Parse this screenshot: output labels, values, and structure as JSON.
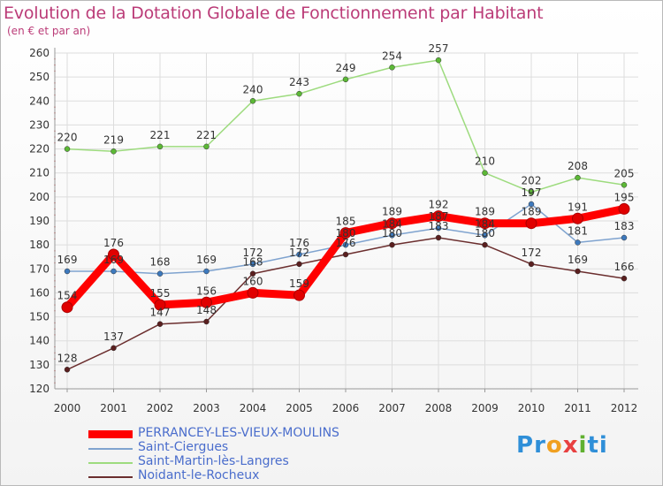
{
  "chart_data": {
    "type": "line",
    "title": "Evolution de la Dotation Globale de Fonctionnement par Habitant",
    "subtitle": "(en € et par an)",
    "xlabel": "",
    "ylabel": "",
    "ylim": [
      120,
      260
    ],
    "y_ticks": [
      120,
      130,
      140,
      150,
      160,
      170,
      180,
      190,
      200,
      210,
      220,
      230,
      240,
      250,
      260
    ],
    "categories": [
      "2000",
      "2001",
      "2002",
      "2003",
      "2004",
      "2005",
      "2006",
      "2007",
      "2008",
      "2009",
      "2010",
      "2011",
      "2012"
    ],
    "grid": true,
    "legend_position": "bottom-left",
    "series": [
      {
        "name": "Noidant-le-Rocheux",
        "color": "#6b2e2e",
        "point_color": "#5a1f1f",
        "values": [
          128,
          137,
          147,
          148,
          168,
          172,
          176,
          180,
          183,
          180,
          172,
          169,
          166
        ]
      },
      {
        "name": "Saint-Ciergues",
        "color": "#7fa3cf",
        "point_color": "#3d79bd",
        "values": [
          169,
          169,
          168,
          169,
          172,
          176,
          180,
          184,
          187,
          184,
          197,
          181,
          183
        ]
      },
      {
        "name": "Saint-Martin-lès-Langres",
        "color": "#9ddb7e",
        "point_color": "#5cb836",
        "values": [
          220,
          219,
          221,
          221,
          240,
          243,
          249,
          254,
          257,
          210,
          202,
          208,
          205
        ]
      },
      {
        "name": "PERRANCEY-LES-VIEUX-MOULINS",
        "color": "#ff0000",
        "point_color": "#e00000",
        "values": [
          154,
          176,
          155,
          156,
          160,
          159,
          185,
          189,
          192,
          189,
          189,
          191,
          195
        ]
      }
    ],
    "point_labels": {
      "Noidant-le-Rocheux": [
        "128",
        "137",
        "147",
        "148",
        "168",
        "172",
        "176",
        "180",
        "183",
        "180",
        "172",
        "169",
        "166"
      ],
      "Saint-Ciergues": [
        "169",
        "169",
        "168",
        "169",
        "172",
        "176",
        "180",
        "184",
        "187",
        "184",
        "197",
        "181",
        "183"
      ],
      "Saint-Martin-lès-Langres": [
        "220",
        "219",
        "221",
        "221",
        "240",
        "243",
        "249",
        "254",
        "257",
        "210",
        "202",
        "208",
        "205"
      ],
      "PERRANCEY-LES-VIEUX-MOULINS": [
        "154",
        "176",
        "155",
        "156",
        "160",
        "159",
        "185",
        "189",
        "192",
        "189",
        "189",
        "191",
        "195"
      ]
    },
    "legend": [
      {
        "name": "PERRANCEY-LES-VIEUX-MOULINS",
        "color": "#ff0000"
      },
      {
        "name": "Saint-Ciergues",
        "color": "#7fa3cf"
      },
      {
        "name": "Saint-Martin-lès-Langres",
        "color": "#9ddb7e"
      },
      {
        "name": "Noidant-le-Rocheux",
        "color": "#6b2e2e"
      }
    ]
  },
  "logo": {
    "letters": [
      "P",
      "r",
      "o",
      "x",
      "i",
      "t",
      "i"
    ],
    "colors": [
      "#2f8fd8",
      "#2f8fd8",
      "#f0a020",
      "#e84040",
      "#60b030",
      "#2f8fd8",
      "#2f8fd8"
    ]
  }
}
